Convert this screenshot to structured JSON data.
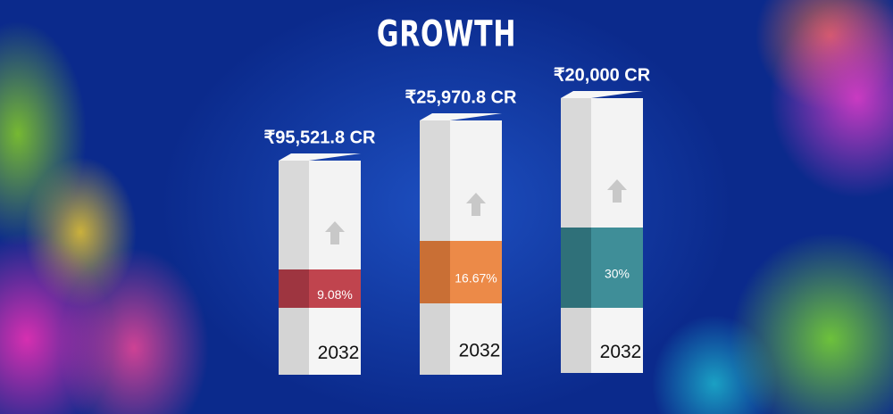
{
  "header": {
    "title": "GROWTH"
  },
  "items": [
    {
      "amount": "₹95,521.8 CR",
      "rate": "9.08%",
      "year": "2032"
    },
    {
      "amount": "₹25,970.8 CR",
      "rate": "16.67%",
      "year": "2032"
    },
    {
      "amount": "₹20,000 CR",
      "rate": "30%",
      "year": "2032"
    }
  ]
}
